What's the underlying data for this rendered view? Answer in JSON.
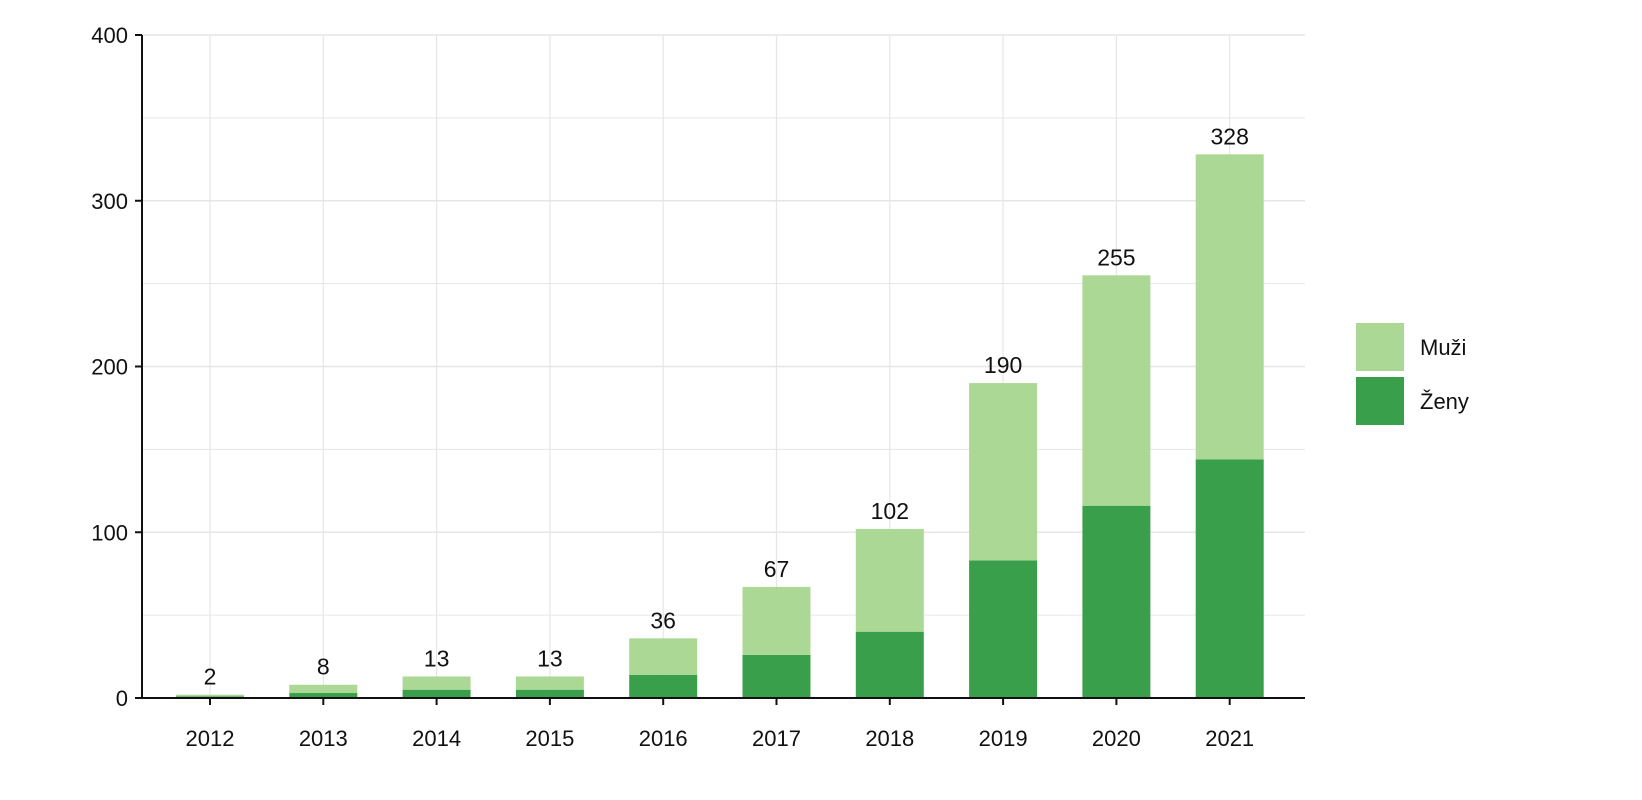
{
  "chart_data": {
    "type": "bar",
    "stacked": true,
    "categories": [
      "2012",
      "2013",
      "2014",
      "2015",
      "2016",
      "2017",
      "2018",
      "2019",
      "2020",
      "2021"
    ],
    "series": [
      {
        "name": "Ženy",
        "color": "#3a9f4a",
        "values": [
          1,
          3,
          5,
          5,
          14,
          26,
          40,
          83,
          116,
          144
        ]
      },
      {
        "name": "Muži",
        "color": "#acd895",
        "values": [
          1,
          5,
          8,
          8,
          22,
          41,
          62,
          107,
          139,
          184
        ]
      }
    ],
    "totals": [
      2,
      8,
      13,
      13,
      36,
      67,
      102,
      190,
      255,
      328
    ],
    "total_labels": [
      "2",
      "8",
      "13",
      "13",
      "36",
      "67",
      "102",
      "190",
      "255",
      "328"
    ],
    "ylim": [
      0,
      400
    ],
    "yticks": [
      0,
      100,
      200,
      300,
      400
    ],
    "ytick_labels": [
      "0",
      "100",
      "200",
      "300",
      "400"
    ],
    "title": "",
    "xlabel": "",
    "ylabel": "",
    "grid": true,
    "legend_position": "right",
    "legend": [
      {
        "name": "Muži",
        "color": "#acd895"
      },
      {
        "name": "Ženy",
        "color": "#3a9f4a"
      }
    ]
  }
}
